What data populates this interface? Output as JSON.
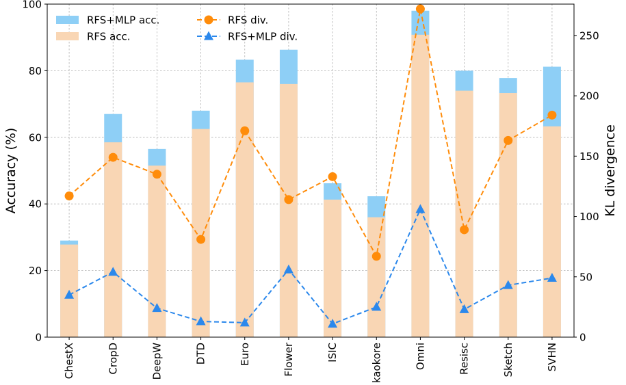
{
  "chart_data": {
    "type": "bar",
    "categories": [
      "ChestX",
      "CropD",
      "DeepW",
      "DTD",
      "Euro",
      "Flower",
      "ISIC",
      "kaokore",
      "Omni",
      "Resisc",
      "Sketch",
      "SVHN"
    ],
    "series": [
      {
        "name": "RFS+MLP acc.",
        "kind": "bar",
        "axis": "left",
        "color": "#8ecff6",
        "values": [
          29,
          67,
          56.5,
          68,
          83.3,
          86.3,
          46.2,
          42.3,
          98,
          80,
          77.8,
          81.2
        ]
      },
      {
        "name": "RFS acc.",
        "kind": "bar",
        "axis": "left",
        "color": "#f9d6b4",
        "values": [
          27.8,
          58.5,
          51.5,
          62.5,
          76.5,
          76,
          41.3,
          36,
          90.8,
          74,
          73.3,
          63.3
        ]
      },
      {
        "name": "RFS div.",
        "kind": "line",
        "axis": "right",
        "color": "#ff8c0a",
        "marker": "circle",
        "values": [
          117,
          149,
          135,
          81,
          171,
          114,
          133,
          67,
          272,
          89,
          163,
          184
        ]
      },
      {
        "name": "RFS+MLP div.",
        "kind": "line",
        "axis": "right",
        "color": "#2b88ec",
        "marker": "triangle",
        "values": [
          35,
          54,
          24,
          13,
          12,
          56,
          11,
          25,
          106,
          23,
          43,
          49
        ]
      }
    ],
    "ylabel": "Accuracy (%)",
    "ylim": [
      0,
      100
    ],
    "yticks": [
      0,
      20,
      40,
      60,
      80,
      100
    ],
    "y2label": "KL divergence",
    "y2lim": [
      0,
      276
    ],
    "y2ticks": [
      0,
      50,
      100,
      150,
      200,
      250
    ],
    "grid": true,
    "legend": "top-left"
  }
}
